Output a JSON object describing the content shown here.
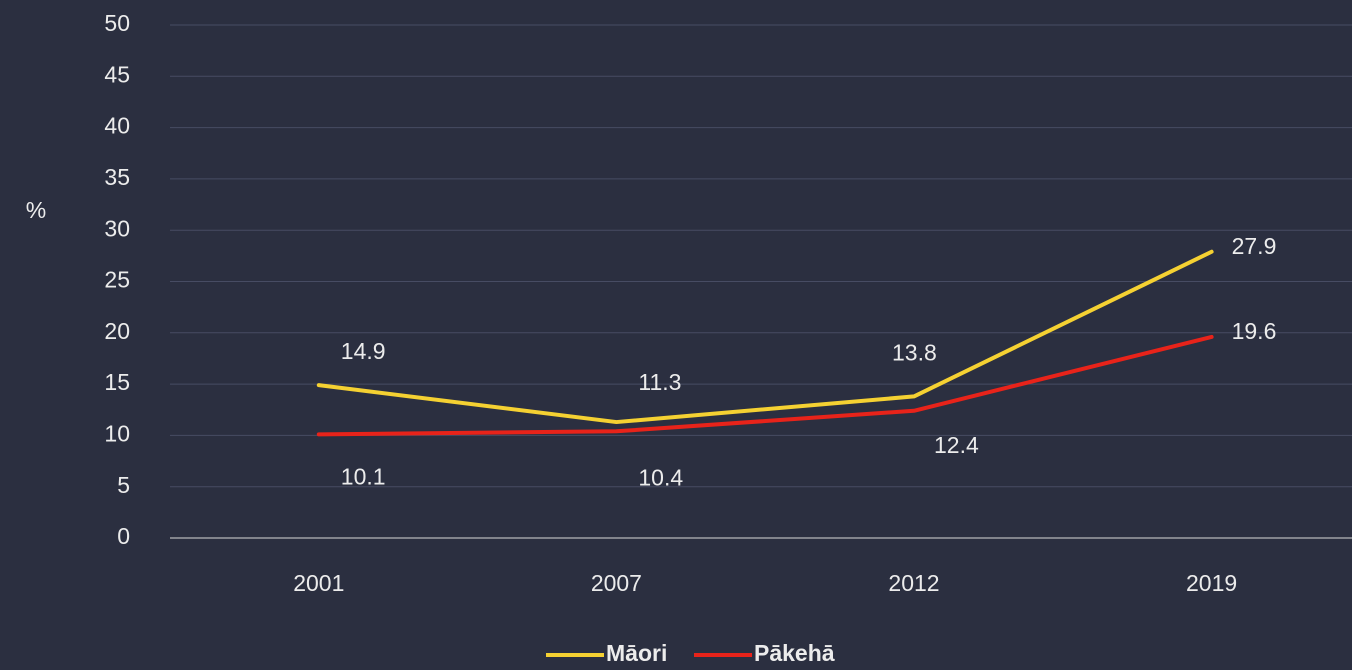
{
  "chart_data": {
    "type": "line",
    "y_label": "%",
    "categories": [
      "2001",
      "2007",
      "2012",
      "2019"
    ],
    "series": [
      {
        "name": "Māori",
        "color": "#f5d132",
        "values": [
          14.9,
          11.3,
          13.8,
          27.9
        ]
      },
      {
        "name": "Pākehā",
        "color": "#e8231a",
        "values": [
          10.1,
          10.4,
          12.4,
          19.6
        ]
      }
    ],
    "ylim": [
      0,
      50
    ],
    "yticks": [
      0,
      5,
      10,
      15,
      20,
      25,
      30,
      35,
      40,
      45,
      50
    ],
    "grid": true,
    "legend": "bottom"
  }
}
